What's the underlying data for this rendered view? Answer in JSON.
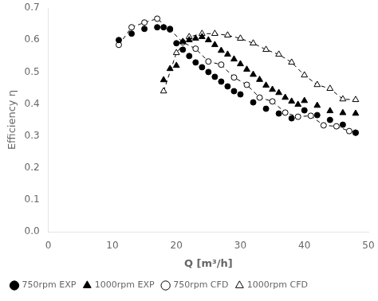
{
  "chart_data": {
    "type": "scatter",
    "xlabel": "Q [m³/h]",
    "ylabel": "Efficiency η",
    "xlim": [
      0,
      50
    ],
    "ylim": [
      0,
      0.7
    ],
    "xticks": [
      0,
      10,
      20,
      30,
      40,
      50
    ],
    "yticks": [
      {
        "value": 0,
        "label": "0.0"
      },
      0.1,
      0.2,
      0.3,
      0.4,
      0.5,
      0.6,
      0.7
    ],
    "grid": false,
    "legend": "lower left",
    "series": [
      {
        "name": "750rpm EXP",
        "color": "black",
        "marker": "circle",
        "line_style": "none",
        "x": [
          11,
          13,
          15,
          17,
          18,
          19,
          20,
          21,
          22,
          23,
          24,
          25,
          26,
          27,
          28,
          29,
          30,
          32,
          34,
          36,
          38,
          40,
          42,
          44,
          46,
          48
        ],
        "values": [
          0.6,
          0.62,
          0.635,
          0.64,
          0.64,
          0.635,
          0.59,
          0.57,
          0.55,
          0.53,
          0.515,
          0.5,
          0.485,
          0.47,
          0.455,
          0.44,
          0.43,
          0.405,
          0.385,
          0.37,
          0.355,
          0.38,
          0.365,
          0.35,
          0.335,
          0.31
        ]
      },
      {
        "name": "750rpm CFD",
        "color": "black",
        "marker": "circle-open",
        "line_style": "dashed",
        "x": [
          11,
          13,
          15,
          17,
          19,
          21,
          23,
          25,
          27,
          29,
          31,
          33,
          35,
          37,
          39,
          41,
          43,
          45,
          47,
          48
        ],
        "values": [
          0.585,
          0.64,
          0.655,
          0.667,
          0.633,
          0.593,
          0.573,
          0.533,
          0.523,
          0.483,
          0.46,
          0.42,
          0.408,
          0.373,
          0.36,
          0.363,
          0.333,
          0.33,
          0.315,
          0.31
        ]
      },
      {
        "name": "1000rpm EXP",
        "color": "black",
        "marker": "triangle",
        "line_style": "none",
        "x": [
          18,
          19,
          20,
          21,
          22,
          23,
          24,
          25,
          26,
          27,
          28,
          29,
          30,
          31,
          32,
          33,
          34,
          35,
          36,
          37,
          38,
          39,
          40,
          42,
          44,
          46,
          48
        ],
        "values": [
          0.475,
          0.51,
          0.52,
          0.595,
          0.6,
          0.605,
          0.61,
          0.6,
          0.585,
          0.567,
          0.555,
          0.54,
          0.525,
          0.508,
          0.492,
          0.476,
          0.458,
          0.445,
          0.435,
          0.42,
          0.408,
          0.398,
          0.41,
          0.395,
          0.378,
          0.372,
          0.37
        ]
      },
      {
        "name": "1000rpm CFD",
        "color": "black",
        "marker": "triangle-open",
        "line_style": "dashed",
        "x": [
          18,
          20,
          22,
          24,
          26,
          28,
          30,
          32,
          34,
          36,
          38,
          40,
          42,
          44,
          46,
          48
        ],
        "values": [
          0.44,
          0.56,
          0.61,
          0.62,
          0.62,
          0.615,
          0.605,
          0.59,
          0.57,
          0.555,
          0.53,
          0.49,
          0.46,
          0.448,
          0.415,
          0.413
        ]
      }
    ]
  }
}
